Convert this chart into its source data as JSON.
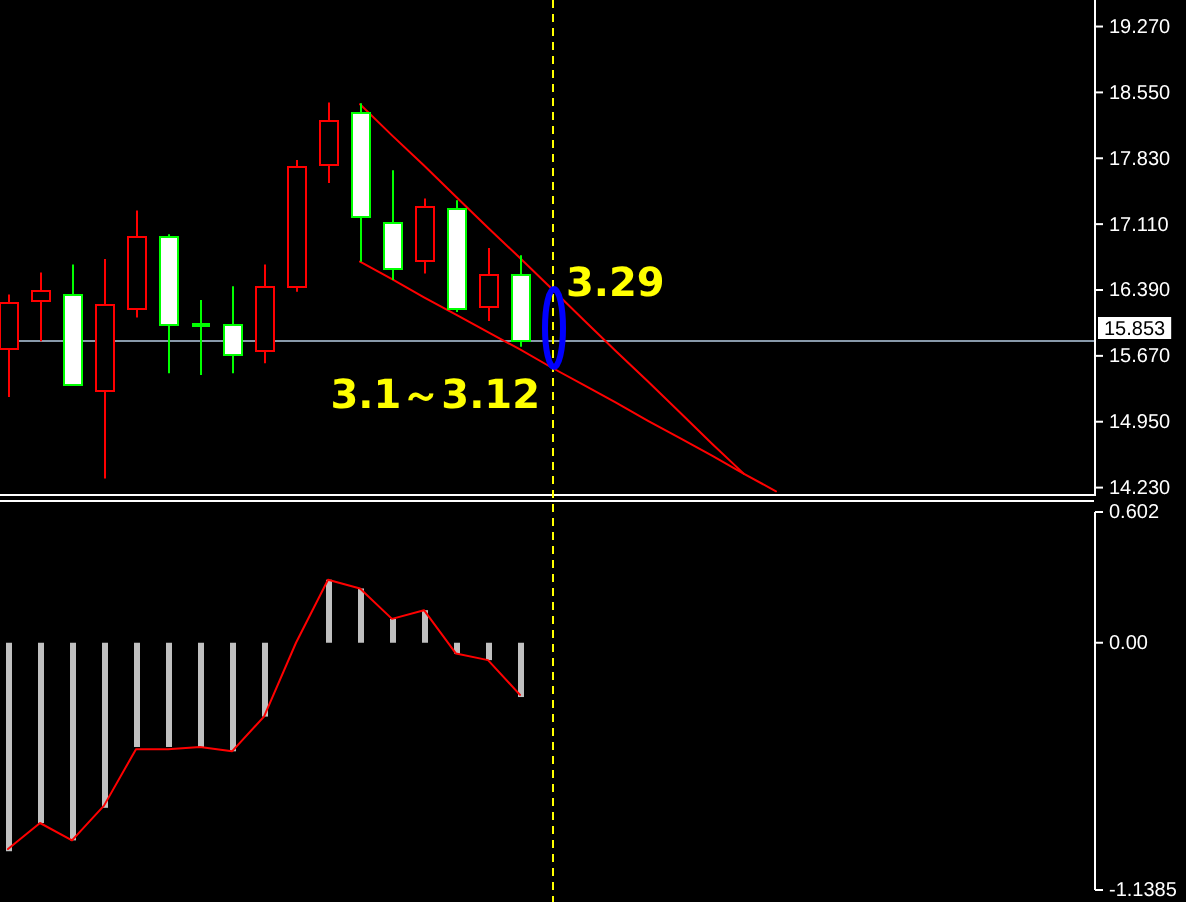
{
  "chart_data": [
    {
      "type": "candlestick",
      "categories": [
        null,
        null,
        null,
        null,
        null,
        null,
        null,
        null,
        null,
        null,
        null,
        null,
        null,
        null,
        null,
        null,
        null,
        null,
        null,
        null,
        null,
        null,
        null,
        null,
        null,
        null,
        null,
        null,
        null,
        null,
        null,
        null,
        null,
        null
      ],
      "ohlc": [
        [
          15.75,
          16.34,
          15.22,
          16.25
        ],
        [
          16.28,
          16.58,
          15.83,
          16.38
        ],
        [
          16.35,
          16.67,
          15.35,
          15.37
        ],
        [
          15.29,
          16.73,
          14.33,
          16.23
        ],
        [
          16.19,
          17.26,
          16.09,
          16.97
        ],
        [
          16.97,
          17.0,
          15.48,
          16.01
        ],
        [
          16.01,
          16.28,
          15.46,
          16.01
        ],
        [
          16.01,
          16.43,
          15.48,
          15.69
        ],
        [
          15.74,
          16.67,
          15.59,
          16.43
        ],
        [
          16.44,
          17.81,
          16.37,
          17.74
        ],
        [
          17.77,
          18.44,
          17.56,
          18.24
        ],
        [
          18.33,
          18.43,
          16.7,
          17.19
        ],
        [
          17.13,
          17.7,
          16.5,
          16.64
        ],
        [
          16.71,
          17.39,
          16.57,
          17.3
        ],
        [
          17.28,
          17.37,
          16.15,
          16.19
        ],
        [
          16.21,
          16.85,
          16.05,
          16.56
        ],
        [
          16.56,
          16.77,
          15.77,
          15.85
        ],
        null,
        null,
        null,
        null,
        null,
        null,
        null,
        null,
        null,
        null,
        null,
        null,
        null,
        null,
        null,
        null,
        null
      ],
      "colors": [
        "#ff0000",
        "#ff0000",
        "#00ff00",
        "#ff0000",
        "#ff0000",
        "#00ff00",
        "#00ff00",
        "#00ff00",
        "#ff0000",
        "#ff0000",
        "#ff0000",
        "#00ff00",
        "#00ff00",
        "#ff0000",
        "#00ff00",
        "#ff0000",
        "#00ff00",
        null,
        null,
        null,
        null,
        null,
        null,
        null,
        null,
        null,
        null,
        null,
        null,
        null,
        null,
        null,
        null,
        null
      ],
      "series": [
        {
          "type": "line",
          "color": "#ff0000",
          "values": [
            null,
            null,
            null,
            null,
            null,
            null,
            null,
            null,
            null,
            null,
            null,
            18.42,
            18.08,
            17.75,
            17.41,
            17.07,
            16.74,
            16.4,
            16.06,
            15.72,
            15.39,
            15.05,
            14.71,
            14.38,
            null,
            null,
            null,
            null,
            null,
            null,
            null,
            null,
            null,
            null
          ]
        },
        {
          "type": "line",
          "color": "#ff0000",
          "values": [
            null,
            null,
            null,
            null,
            null,
            null,
            null,
            null,
            null,
            null,
            null,
            16.7,
            16.51,
            16.31,
            16.12,
            15.93,
            15.74,
            15.54,
            15.35,
            15.16,
            14.96,
            14.77,
            14.58,
            14.38,
            14.19,
            null,
            null,
            null,
            null,
            null,
            null,
            null,
            null,
            null
          ]
        }
      ],
      "ylim": [
        14.16,
        19.56
      ],
      "yticks": [
        {
          "value": 19.27,
          "label": "19.270"
        },
        {
          "value": 18.55,
          "label": "18.550"
        },
        {
          "value": 17.83,
          "label": "17.830"
        },
        {
          "value": 17.11,
          "label": "17.110"
        },
        {
          "value": 16.39,
          "label": "16.390"
        },
        {
          "value": 15.67,
          "label": "15.670"
        },
        {
          "value": 14.95,
          "label": "14.950"
        },
        {
          "value": 14.23,
          "label": "14.230"
        }
      ],
      "ref_lines": [
        {
          "axis": "y",
          "value": 15.853,
          "label": "15.853",
          "color": "#8899aa"
        }
      ],
      "annotations": [
        "3.29",
        "3.1～3.12"
      ],
      "tick_labels": "y"
    },
    {
      "type": "bar",
      "categories": [
        null,
        null,
        null,
        null,
        null,
        null,
        null,
        null,
        null,
        null,
        null,
        null,
        null,
        null,
        null,
        null,
        null,
        null,
        null,
        null,
        null,
        null,
        null,
        null,
        null,
        null,
        null,
        null,
        null,
        null,
        null,
        null,
        null,
        null
      ],
      "series": [
        {
          "type": "bar",
          "color": "#c0c0c0",
          "values": [
            -0.96,
            -0.83,
            -0.91,
            -0.76,
            -0.48,
            -0.48,
            -0.48,
            -0.5,
            -0.34,
            null,
            0.29,
            0.25,
            0.11,
            0.15,
            -0.05,
            -0.08,
            -0.25,
            null,
            null,
            null,
            null,
            null,
            null,
            null,
            null,
            null,
            null,
            null,
            null,
            null,
            null,
            null,
            null,
            null
          ]
        },
        {
          "type": "line",
          "color": "#ff0000",
          "values": [
            -0.95,
            -0.83,
            -0.91,
            -0.75,
            -0.49,
            -0.49,
            -0.48,
            -0.5,
            -0.34,
            0.0,
            0.29,
            0.25,
            0.11,
            0.15,
            -0.05,
            -0.08,
            -0.24,
            null,
            null,
            null,
            null,
            null,
            null,
            null,
            null,
            null,
            null,
            null,
            null,
            null,
            null,
            null,
            null,
            null
          ]
        }
      ],
      "ylim": [
        -1.1385,
        0.602
      ],
      "yticks": [
        0.602,
        {
          "value": 0,
          "label": "0.00"
        },
        -1.1385
      ],
      "tick_labels": "y"
    }
  ]
}
